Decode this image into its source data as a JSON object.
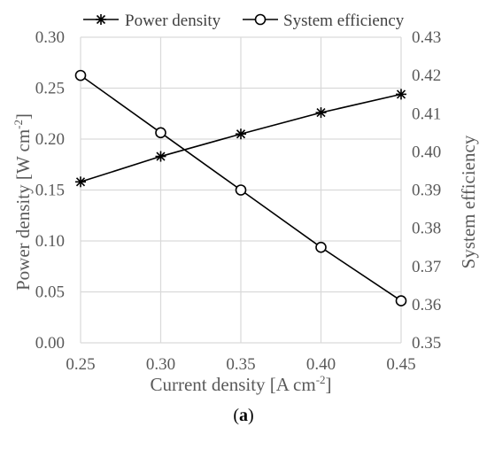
{
  "chart_data": {
    "type": "line",
    "x": [
      0.25,
      0.3,
      0.35,
      0.4,
      0.45
    ],
    "xlim": [
      0.25,
      0.45
    ],
    "x_ticks": [
      "0.25",
      "0.30",
      "0.35",
      "0.40",
      "0.45"
    ],
    "xlabel_main": "Current density  [A cm",
    "xlabel_sup": "-2",
    "xlabel_end": "]",
    "ylabel_left_main": "Power density [W cm",
    "ylabel_left_sup": "-2",
    "ylabel_left_end": "]",
    "ylabel_right": "System efficiency",
    "ylim_left": [
      0.0,
      0.3
    ],
    "ylim_right": [
      0.35,
      0.43
    ],
    "y_left_ticks": [
      "0.00",
      "0.05",
      "0.10",
      "0.15",
      "0.20",
      "0.25",
      "0.30"
    ],
    "y_right_ticks": [
      "0.35",
      "0.36",
      "0.37",
      "0.38",
      "0.39",
      "0.40",
      "0.41",
      "0.42",
      "0.43"
    ],
    "grid": true,
    "legend_position": "top",
    "series": [
      {
        "name": "Power density",
        "axis": "left",
        "marker": "asterisk",
        "color": "#000000",
        "values": [
          0.158,
          0.183,
          0.205,
          0.226,
          0.244
        ]
      },
      {
        "name": "System efficiency",
        "axis": "right",
        "marker": "circle",
        "color": "#000000",
        "values": [
          0.42,
          0.405,
          0.39,
          0.375,
          0.361
        ]
      }
    ]
  },
  "caption": {
    "open": "(",
    "letter": "a",
    "close": ")"
  }
}
